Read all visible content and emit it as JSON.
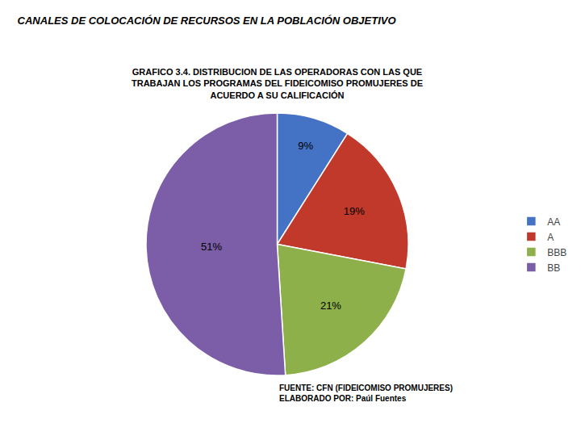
{
  "chart_data": {
    "type": "pie",
    "title": "CANALES DE COLOCACIÓN DE RECURSOS EN LA POBLACIÓN OBJETIVO",
    "subtitle": [
      "GRAFICO 3.4. DISTRIBUCION DE LAS OPERADORAS CON LAS QUE",
      "TRABAJAN LOS PROGRAMAS DEL FIDEICOMISO PROMUJERES DE",
      "ACUERDO A SU CALIFICACIÓN"
    ],
    "categories": [
      "AA",
      "A",
      "BBB",
      "BB"
    ],
    "values": [
      9,
      19,
      21,
      51
    ],
    "value_labels": [
      "9%",
      "19%",
      "21%",
      "51%"
    ],
    "colors": [
      "#4472C4",
      "#C0392B",
      "#8DB04A",
      "#7B5EA7"
    ],
    "data_labels": true,
    "legend": "right",
    "annotations": [
      "FUENTE: CFN (FIDEICOMISO PROMUJERES)",
      "ELABORADO POR: Paúl Fuentes"
    ]
  }
}
